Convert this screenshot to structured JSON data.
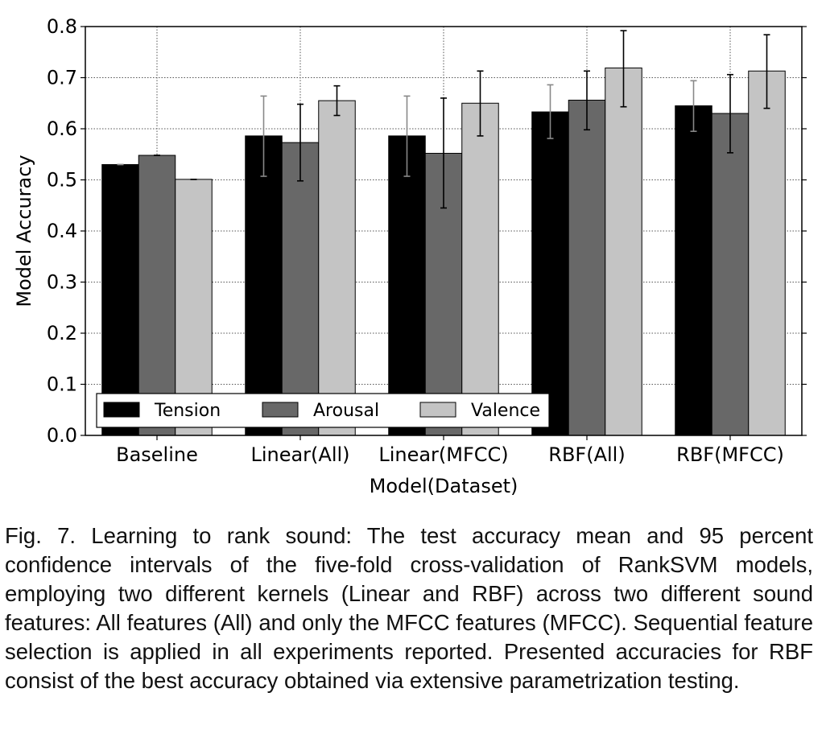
{
  "chart_data": {
    "type": "bar",
    "title": "",
    "xlabel": "Model(Dataset)",
    "ylabel": "Model Accuracy",
    "ylim": [
      0.0,
      0.8
    ],
    "yticks": [
      "0.0",
      "0.1",
      "0.2",
      "0.3",
      "0.4",
      "0.5",
      "0.6",
      "0.7",
      "0.8"
    ],
    "categories": [
      "Baseline",
      "Linear(All)",
      "Linear(MFCC)",
      "RBF(All)",
      "RBF(MFCC)"
    ],
    "grid": true,
    "legend_position": "bottom",
    "series": [
      {
        "name": "Tension",
        "color": "#000000",
        "values": [
          0.53,
          0.586,
          0.586,
          0.633,
          0.645
        ],
        "err_low": [
          0.53,
          0.507,
          0.507,
          0.581,
          0.595
        ],
        "err_high": [
          0.53,
          0.664,
          0.664,
          0.686,
          0.694
        ]
      },
      {
        "name": "Arousal",
        "color": "#686868",
        "values": [
          0.548,
          0.573,
          0.552,
          0.656,
          0.63
        ],
        "err_low": [
          0.548,
          0.498,
          0.445,
          0.598,
          0.553
        ],
        "err_high": [
          0.548,
          0.648,
          0.66,
          0.713,
          0.706
        ]
      },
      {
        "name": "Valence",
        "color": "#c4c4c4",
        "values": [
          0.501,
          0.655,
          0.65,
          0.719,
          0.713
        ],
        "err_low": [
          0.501,
          0.626,
          0.586,
          0.643,
          0.64
        ],
        "err_high": [
          0.501,
          0.684,
          0.713,
          0.792,
          0.784
        ]
      }
    ]
  },
  "caption": "Fig. 7. Learning to rank sound: The test accuracy mean and 95 percent confidence intervals of the five-fold cross-validation of RankSVM models, employing two different kernels (Linear and RBF) across two different sound features: All features (All) and only the MFCC features (MFCC). Sequential feature selection is applied in all experiments reported. Presented accuracies for RBF consist of the best accuracy obtained via extensive parametrization testing."
}
